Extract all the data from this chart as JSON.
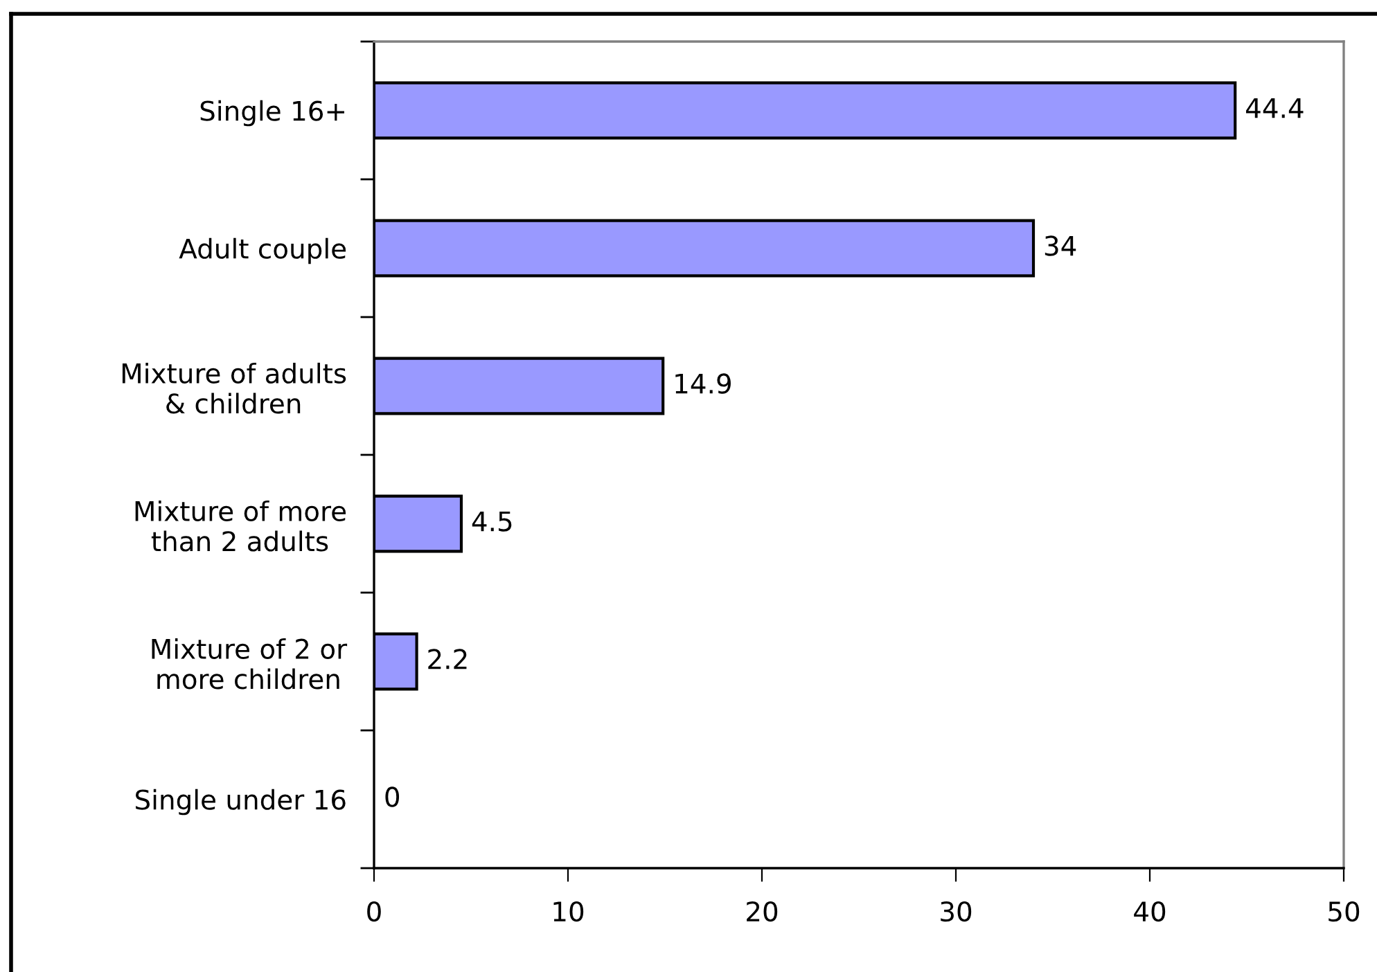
{
  "chart_data": {
    "type": "bar",
    "orientation": "horizontal",
    "categories": [
      "Single 16+",
      "Adult couple",
      "Mixture of adults\n& children",
      "Mixture of more\nthan 2 adults",
      "Mixture of 2 or\nmore children",
      "Single under 16"
    ],
    "values": [
      44.4,
      34,
      14.9,
      4.5,
      2.2,
      0
    ],
    "color": "#9999ff",
    "xlim": [
      0,
      50
    ],
    "xticks": [
      0,
      10,
      20,
      30,
      40,
      50
    ],
    "data_labels": true,
    "grid": false,
    "legend": false
  }
}
